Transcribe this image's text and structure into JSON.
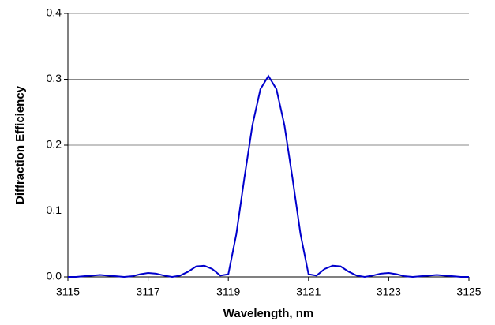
{
  "chart_data": {
    "type": "line",
    "x_label": "Wavelength, nm",
    "y_label": "Diffraction Efficiency",
    "x": [
      3115.0,
      3115.2,
      3115.4,
      3115.6,
      3115.8,
      3116.0,
      3116.2,
      3116.4,
      3116.6,
      3116.8,
      3117.0,
      3117.2,
      3117.4,
      3117.6,
      3117.8,
      3118.0,
      3118.2,
      3118.4,
      3118.6,
      3118.8,
      3119.0,
      3119.2,
      3119.4,
      3119.6,
      3119.8,
      3120.0,
      3120.2,
      3120.4,
      3120.6,
      3120.8,
      3121.0,
      3121.2,
      3121.4,
      3121.6,
      3121.8,
      3122.0,
      3122.2,
      3122.4,
      3122.6,
      3122.8,
      3123.0,
      3123.2,
      3123.4,
      3123.6,
      3123.8,
      3124.0,
      3124.2,
      3124.4,
      3124.6,
      3124.8,
      3125.0
    ],
    "series": [
      {
        "color": "#0000cc",
        "values": [
          0.0,
          0.0,
          0.001,
          0.002,
          0.003,
          0.002,
          0.001,
          0.0,
          0.001,
          0.004,
          0.006,
          0.005,
          0.002,
          0.0,
          0.002,
          0.008,
          0.016,
          0.017,
          0.012,
          0.002,
          0.004,
          0.065,
          0.15,
          0.23,
          0.285,
          0.305,
          0.285,
          0.23,
          0.15,
          0.065,
          0.004,
          0.002,
          0.012,
          0.017,
          0.016,
          0.008,
          0.002,
          0.0,
          0.002,
          0.005,
          0.006,
          0.004,
          0.001,
          0.0,
          0.001,
          0.002,
          0.003,
          0.002,
          0.001,
          0.0,
          0.0
        ]
      }
    ],
    "xlim": [
      3115,
      3125
    ],
    "xticks": [
      3115,
      3117,
      3119,
      3121,
      3123,
      3125
    ],
    "ylim": [
      0,
      0.4
    ],
    "yticks": [
      {
        "value": 0,
        "label": "0.0"
      },
      0.1,
      0.2,
      0.3,
      0.4
    ],
    "grid": true
  }
}
